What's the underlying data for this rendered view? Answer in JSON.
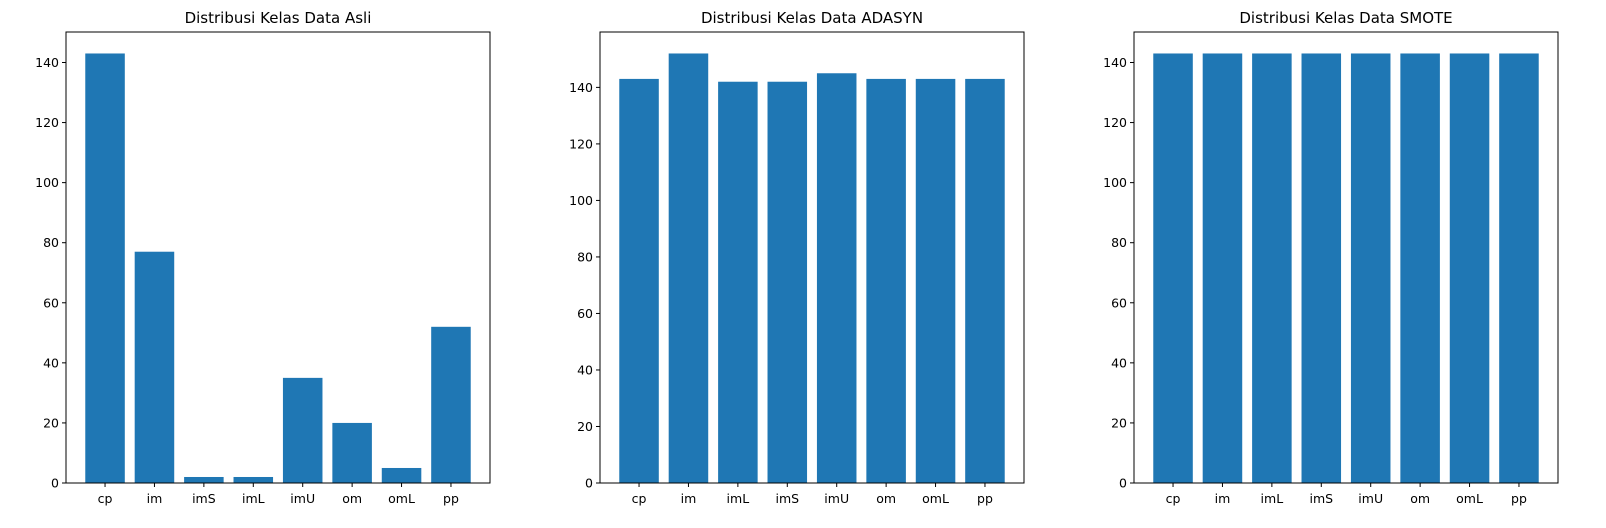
{
  "chart_data": [
    {
      "type": "bar",
      "title": "Distribusi Kelas Data Asli",
      "xlabel": "",
      "ylabel": "",
      "categories": [
        "cp",
        "im",
        "imS",
        "imL",
        "imU",
        "om",
        "omL",
        "pp"
      ],
      "values": [
        143,
        77,
        2,
        2,
        35,
        20,
        5,
        52
      ],
      "ylim": [
        0,
        150.15
      ],
      "yticks": [
        0,
        20,
        40,
        60,
        80,
        100,
        120,
        140
      ],
      "color": "#1f77b4",
      "grid": false
    },
    {
      "type": "bar",
      "title": "Distribusi Kelas Data ADASYN",
      "xlabel": "",
      "ylabel": "",
      "categories": [
        "cp",
        "im",
        "imL",
        "imS",
        "imU",
        "om",
        "omL",
        "pp"
      ],
      "values": [
        143,
        152,
        142,
        142,
        145,
        143,
        143,
        143
      ],
      "ylim": [
        0,
        159.6
      ],
      "yticks": [
        0,
        20,
        40,
        60,
        80,
        100,
        120,
        140
      ],
      "color": "#1f77b4",
      "grid": false
    },
    {
      "type": "bar",
      "title": "Distribusi Kelas Data SMOTE",
      "xlabel": "",
      "ylabel": "",
      "categories": [
        "cp",
        "im",
        "imL",
        "imS",
        "imU",
        "om",
        "omL",
        "pp"
      ],
      "values": [
        143,
        143,
        143,
        143,
        143,
        143,
        143,
        143
      ],
      "ylim": [
        0,
        150.15
      ],
      "yticks": [
        0,
        20,
        40,
        60,
        80,
        100,
        120,
        140
      ],
      "color": "#1f77b4",
      "grid": false
    }
  ]
}
